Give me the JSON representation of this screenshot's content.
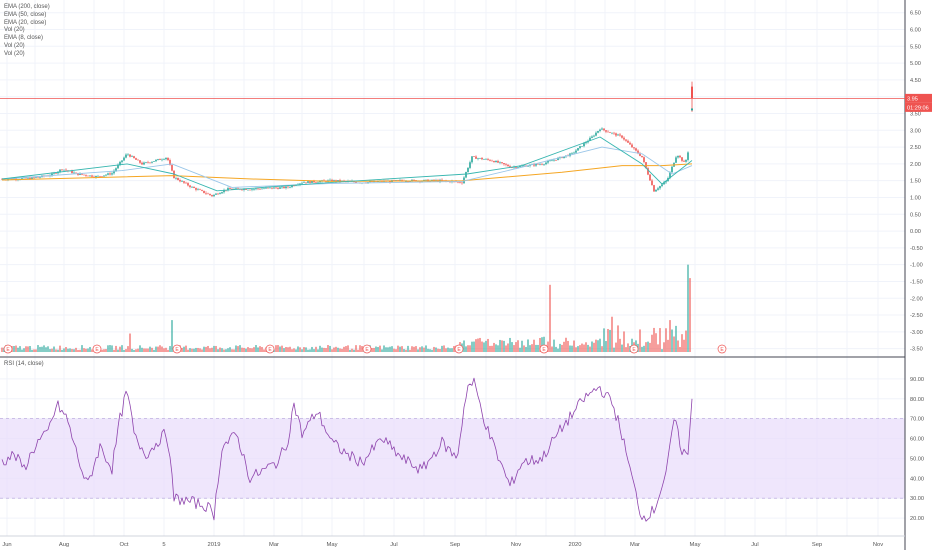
{
  "legend": {
    "items": [
      "EMA (200, close)",
      "EMA (50, close)",
      "EMA (20, close)",
      "Vol (20)",
      "EMA (8, close)",
      "Vol (20)",
      "Vol (20)"
    ]
  },
  "rsi_label": "RSI (14, close)",
  "price_tag": "3.95",
  "time_tag": "01:29:06",
  "colors": {
    "up": "#26a69a",
    "down": "#ef5350",
    "ema200": "#f5a623",
    "ema50": "#9ac6e8",
    "ema20": "#38b6b0",
    "ema8": "#ef9a9a",
    "rsi": "#8e44ad",
    "rsi_band": "#e9ddfb",
    "grid": "#f0f3fa",
    "hline": "#ef5350"
  },
  "earnings_marker": "E",
  "chart_data": [
    {
      "type": "line",
      "name": "price",
      "y_axis_labels": [
        "6.50",
        "6.00",
        "5.50",
        "5.00",
        "4.50",
        "4.00",
        "3.50",
        "3.00",
        "2.50",
        "2.00",
        "1.50",
        "1.00",
        "0.50",
        "0.00",
        "-0.50",
        "-1.00",
        "-1.50",
        "-2.00",
        "-2.50",
        "-3.00",
        "-3.50"
      ],
      "ylim": [
        -3.6,
        6.7
      ],
      "x_tick_labels": [
        "Jun",
        "Aug",
        "Oct",
        "5",
        "2019",
        "Mar",
        "May",
        "Jul",
        "Sep",
        "Nov",
        "2020",
        "Mar",
        "May",
        "Jul",
        "Sep",
        "Nov"
      ],
      "horizontal_line": 3.95,
      "close_points": [
        {
          "t": 0,
          "v": 1.55
        },
        {
          "t": 30,
          "v": 1.57
        },
        {
          "t": 50,
          "v": 1.68
        },
        {
          "t": 60,
          "v": 1.85
        },
        {
          "t": 75,
          "v": 1.7
        },
        {
          "t": 95,
          "v": 1.62
        },
        {
          "t": 110,
          "v": 1.72
        },
        {
          "t": 125,
          "v": 2.3
        },
        {
          "t": 140,
          "v": 2.0
        },
        {
          "t": 160,
          "v": 2.15
        },
        {
          "t": 165,
          "v": 2.2
        },
        {
          "t": 172,
          "v": 1.6
        },
        {
          "t": 190,
          "v": 1.3
        },
        {
          "t": 210,
          "v": 1.05
        },
        {
          "t": 225,
          "v": 1.25
        },
        {
          "t": 250,
          "v": 1.25
        },
        {
          "t": 285,
          "v": 1.3
        },
        {
          "t": 300,
          "v": 1.45
        },
        {
          "t": 330,
          "v": 1.5
        },
        {
          "t": 360,
          "v": 1.45
        },
        {
          "t": 400,
          "v": 1.5
        },
        {
          "t": 440,
          "v": 1.5
        },
        {
          "t": 460,
          "v": 1.45
        },
        {
          "t": 470,
          "v": 2.2
        },
        {
          "t": 490,
          "v": 2.1
        },
        {
          "t": 510,
          "v": 1.9
        },
        {
          "t": 540,
          "v": 2.0
        },
        {
          "t": 570,
          "v": 2.3
        },
        {
          "t": 590,
          "v": 2.8
        },
        {
          "t": 598,
          "v": 3.05
        },
        {
          "t": 620,
          "v": 2.8
        },
        {
          "t": 640,
          "v": 2.2
        },
        {
          "t": 652,
          "v": 1.2
        },
        {
          "t": 665,
          "v": 1.5
        },
        {
          "t": 675,
          "v": 2.3
        },
        {
          "t": 683,
          "v": 2.0
        },
        {
          "t": 688,
          "v": 2.6
        },
        {
          "t": 690,
          "v": 4.4
        }
      ],
      "ema200": [
        {
          "t": 0,
          "v": 1.52
        },
        {
          "t": 170,
          "v": 1.65
        },
        {
          "t": 250,
          "v": 1.55
        },
        {
          "t": 330,
          "v": 1.48
        },
        {
          "t": 460,
          "v": 1.5
        },
        {
          "t": 560,
          "v": 1.75
        },
        {
          "t": 620,
          "v": 1.95
        },
        {
          "t": 660,
          "v": 1.95
        },
        {
          "t": 690,
          "v": 2.0
        }
      ],
      "ema50": [
        {
          "t": 0,
          "v": 1.55
        },
        {
          "t": 120,
          "v": 1.8
        },
        {
          "t": 170,
          "v": 2.0
        },
        {
          "t": 230,
          "v": 1.3
        },
        {
          "t": 330,
          "v": 1.42
        },
        {
          "t": 460,
          "v": 1.48
        },
        {
          "t": 520,
          "v": 1.9
        },
        {
          "t": 600,
          "v": 2.5
        },
        {
          "t": 640,
          "v": 2.3
        },
        {
          "t": 670,
          "v": 1.7
        },
        {
          "t": 690,
          "v": 1.95
        }
      ],
      "ema20": [
        {
          "t": 0,
          "v": 1.55
        },
        {
          "t": 125,
          "v": 2.0
        },
        {
          "t": 172,
          "v": 1.7
        },
        {
          "t": 215,
          "v": 1.2
        },
        {
          "t": 330,
          "v": 1.45
        },
        {
          "t": 465,
          "v": 1.7
        },
        {
          "t": 520,
          "v": 1.95
        },
        {
          "t": 598,
          "v": 2.8
        },
        {
          "t": 640,
          "v": 2.0
        },
        {
          "t": 660,
          "v": 1.4
        },
        {
          "t": 690,
          "v": 2.1
        }
      ],
      "volume_spikes": [
        {
          "t": 128,
          "v": -3.05
        },
        {
          "t": 170,
          "v": -2.65
        },
        {
          "t": 548,
          "v": -1.6
        },
        {
          "t": 610,
          "v": -2.55
        },
        {
          "t": 643,
          "v": -2.2
        },
        {
          "t": 668,
          "v": -2.65
        },
        {
          "t": 686,
          "v": -1.0
        },
        {
          "t": 688,
          "v": -1.4
        }
      ],
      "earnings_t": [
        6,
        95,
        175,
        268,
        365,
        457,
        542,
        632,
        720
      ]
    },
    {
      "type": "line",
      "name": "RSI (14, close)",
      "y_axis_labels": [
        "90.00",
        "80.00",
        "70.00",
        "60.00",
        "50.00",
        "40.00",
        "30.00",
        "20.00"
      ],
      "ylim": [
        14,
        96
      ],
      "band": [
        30,
        70
      ],
      "points": [
        {
          "t": 0,
          "v": 48
        },
        {
          "t": 12,
          "v": 52
        },
        {
          "t": 22,
          "v": 45
        },
        {
          "t": 35,
          "v": 58
        },
        {
          "t": 45,
          "v": 62
        },
        {
          "t": 55,
          "v": 77
        },
        {
          "t": 65,
          "v": 70
        },
        {
          "t": 75,
          "v": 52
        },
        {
          "t": 85,
          "v": 36
        },
        {
          "t": 98,
          "v": 56
        },
        {
          "t": 110,
          "v": 45
        },
        {
          "t": 118,
          "v": 70
        },
        {
          "t": 125,
          "v": 84
        },
        {
          "t": 133,
          "v": 60
        },
        {
          "t": 145,
          "v": 52
        },
        {
          "t": 158,
          "v": 60
        },
        {
          "t": 165,
          "v": 63
        },
        {
          "t": 172,
          "v": 30
        },
        {
          "t": 190,
          "v": 28
        },
        {
          "t": 205,
          "v": 26
        },
        {
          "t": 212,
          "v": 22
        },
        {
          "t": 220,
          "v": 56
        },
        {
          "t": 235,
          "v": 62
        },
        {
          "t": 248,
          "v": 40
        },
        {
          "t": 275,
          "v": 48
        },
        {
          "t": 285,
          "v": 57
        },
        {
          "t": 292,
          "v": 78
        },
        {
          "t": 300,
          "v": 62
        },
        {
          "t": 315,
          "v": 74
        },
        {
          "t": 330,
          "v": 58
        },
        {
          "t": 345,
          "v": 52
        },
        {
          "t": 360,
          "v": 48
        },
        {
          "t": 380,
          "v": 60
        },
        {
          "t": 400,
          "v": 50
        },
        {
          "t": 420,
          "v": 44
        },
        {
          "t": 440,
          "v": 58
        },
        {
          "t": 455,
          "v": 50
        },
        {
          "t": 465,
          "v": 86
        },
        {
          "t": 472,
          "v": 88
        },
        {
          "t": 485,
          "v": 65
        },
        {
          "t": 495,
          "v": 52
        },
        {
          "t": 508,
          "v": 36
        },
        {
          "t": 520,
          "v": 48
        },
        {
          "t": 540,
          "v": 50
        },
        {
          "t": 555,
          "v": 62
        },
        {
          "t": 570,
          "v": 72
        },
        {
          "t": 582,
          "v": 80
        },
        {
          "t": 597,
          "v": 86
        },
        {
          "t": 610,
          "v": 78
        },
        {
          "t": 618,
          "v": 66
        },
        {
          "t": 630,
          "v": 40
        },
        {
          "t": 640,
          "v": 20
        },
        {
          "t": 652,
          "v": 24
        },
        {
          "t": 665,
          "v": 44
        },
        {
          "t": 672,
          "v": 70
        },
        {
          "t": 680,
          "v": 54
        },
        {
          "t": 686,
          "v": 52
        },
        {
          "t": 690,
          "v": 80
        }
      ]
    }
  ]
}
